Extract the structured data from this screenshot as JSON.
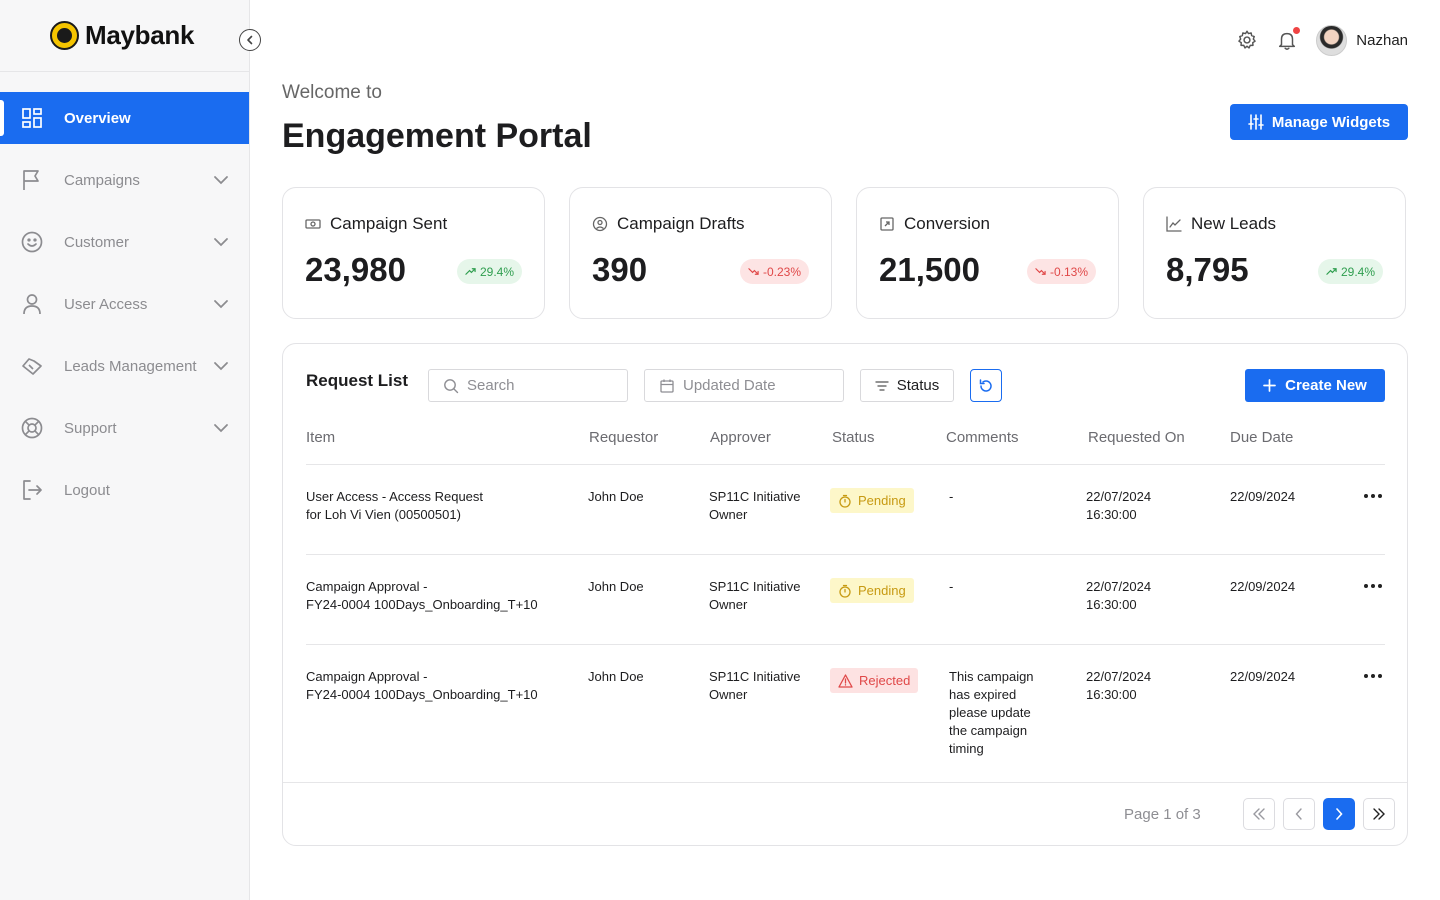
{
  "brand": {
    "name": "Maybank"
  },
  "sidebar": {
    "items": [
      {
        "label": "Overview",
        "icon": "grid-icon"
      },
      {
        "label": "Campaigns",
        "icon": "flag-icon"
      },
      {
        "label": "Customer",
        "icon": "smile-icon"
      },
      {
        "label": "User Access",
        "icon": "user-icon"
      },
      {
        "label": "Leads Management",
        "icon": "handshake-icon"
      },
      {
        "label": "Support",
        "icon": "lifebuoy-icon"
      },
      {
        "label": "Logout",
        "icon": "logout-icon"
      }
    ]
  },
  "topbar": {
    "user_name": "Nazhan"
  },
  "header": {
    "welcome": "Welcome to",
    "title": "Engagement Portal",
    "manage_label": "Manage Widgets"
  },
  "stats": [
    {
      "title": "Campaign Sent",
      "value": "23,980",
      "change": "29.4%",
      "trend": "up"
    },
    {
      "title": "Campaign Drafts",
      "value": "390",
      "change": "-0.23%",
      "trend": "down"
    },
    {
      "title": "Conversion",
      "value": "21,500",
      "change": "-0.13%",
      "trend": "down"
    },
    {
      "title": "New Leads",
      "value": "8,795",
      "change": "29.4%",
      "trend": "up"
    }
  ],
  "requests": {
    "title": "Request List",
    "search_placeholder": "Search",
    "date_filter": "Updated Date",
    "status_filter": "Status",
    "create_label": "Create New",
    "columns": [
      "Item",
      "Requestor",
      "Approver",
      "Status",
      "Comments",
      "Requested On",
      "Due Date"
    ],
    "rows": [
      {
        "item_line1": "User Access - Access Request",
        "item_line2": "for Loh Vi Vien (00500501)",
        "requestor": "John Doe",
        "approver_line1": "SP11C Initiative",
        "approver_line2": "Owner",
        "status": "Pending",
        "comment_lines": [
          "-"
        ],
        "requested_date": "22/07/2024",
        "requested_time": "16:30:00",
        "due_date": "22/09/2024"
      },
      {
        "item_line1": "Campaign Approval -",
        "item_line2": "FY24-0004 100Days_Onboarding_T+10",
        "requestor": "John Doe",
        "approver_line1": "SP11C Initiative",
        "approver_line2": "Owner",
        "status": "Pending",
        "comment_lines": [
          "-"
        ],
        "requested_date": "22/07/2024",
        "requested_time": "16:30:00",
        "due_date": "22/09/2024"
      },
      {
        "item_line1": "Campaign Approval -",
        "item_line2": "FY24-0004 100Days_Onboarding_T+10",
        "requestor": "John Doe",
        "approver_line1": "SP11C Initiative",
        "approver_line2": "Owner",
        "status": "Rejected",
        "comment_lines": [
          "This campaign",
          "has expired",
          "please update",
          "the campaign",
          "timing"
        ],
        "requested_date": "22/07/2024",
        "requested_time": "16:30:00",
        "due_date": "22/09/2024"
      }
    ],
    "page_info": "Page 1 of 3"
  },
  "colors": {
    "accent": "#1a6cf0",
    "up": "#2f9e4f",
    "down": "#e04848",
    "pending": "#c79a12"
  }
}
